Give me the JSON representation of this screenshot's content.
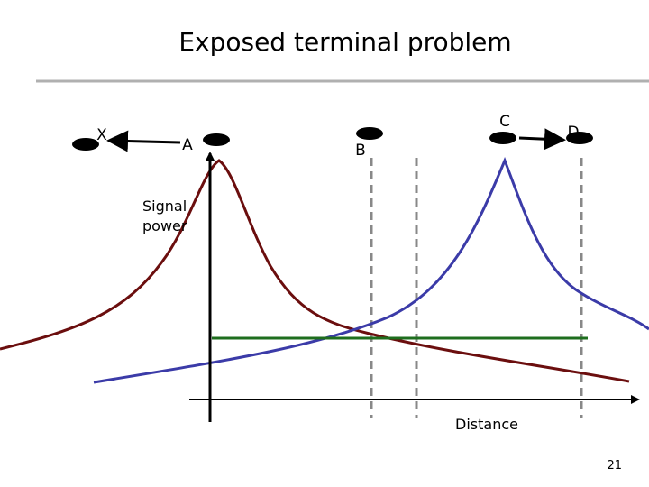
{
  "title": "Exposed terminal problem",
  "nodes": [
    {
      "label": "X"
    },
    {
      "label": "A"
    },
    {
      "label": "B"
    },
    {
      "label": "C"
    },
    {
      "label": "D"
    }
  ],
  "axes": {
    "y_label": "Signal power",
    "x_label": "Distance"
  },
  "page_number": "21"
}
